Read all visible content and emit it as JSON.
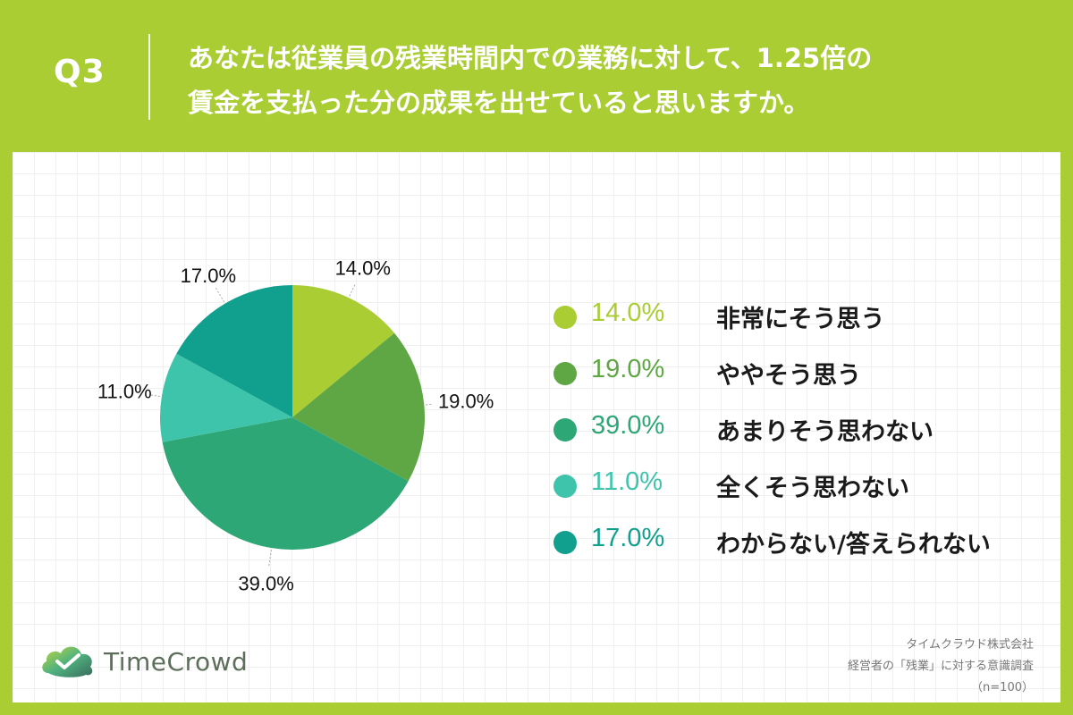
{
  "header": {
    "q_label": "Q3",
    "question_line1": "あなたは従業員の残業時間内での業務に対して、1.25倍の",
    "question_line2": "賃金を支払った分の成果を出せていると思いますか。"
  },
  "chart_data": {
    "type": "pie",
    "categories": [
      "非常にそう思う",
      "ややそう思う",
      "あまりそう思わない",
      "全くそう思わない",
      "わからない/答えられない"
    ],
    "values": [
      14.0,
      19.0,
      39.0,
      11.0,
      17.0
    ],
    "labels": [
      "14.0%",
      "19.0%",
      "39.0%",
      "11.0%",
      "17.0%"
    ],
    "colors": [
      "#a9cd32",
      "#5fa744",
      "#2ea776",
      "#3ec4aa",
      "#12a08e"
    ],
    "start": "12 o'clock",
    "direction": "clockwise",
    "legend_position": "right"
  },
  "legend": {
    "items": [
      {
        "value": "14.0%",
        "label": "非常にそう思う",
        "color": "#a9cd32"
      },
      {
        "value": "19.0%",
        "label": "ややそう思う",
        "color": "#5fa744"
      },
      {
        "value": "39.0%",
        "label": "あまりそう思わない",
        "color": "#2ea776"
      },
      {
        "value": "11.0%",
        "label": "全くそう思わない",
        "color": "#3ec4aa"
      },
      {
        "value": "17.0%",
        "label": "わからない/答えられない",
        "color": "#12a08e"
      }
    ]
  },
  "footer": {
    "company": "タイムクラウド株式会社",
    "survey": "経営者の「残業」に対する意識調査",
    "sample": "（n=100）"
  },
  "logo": {
    "text": "TimeCrowd",
    "icon": "timecrowd-cloud-icon"
  }
}
